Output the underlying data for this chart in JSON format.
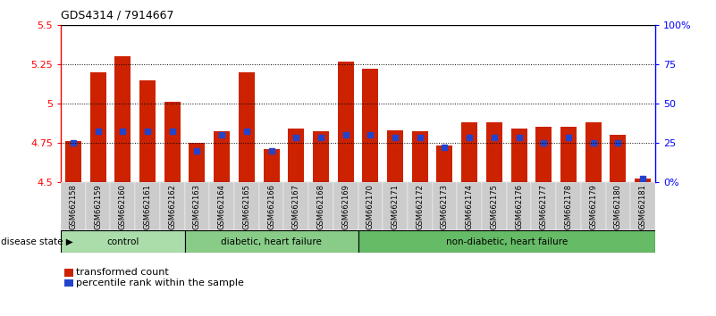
{
  "title": "GDS4314 / 7914667",
  "samples": [
    "GSM662158",
    "GSM662159",
    "GSM662160",
    "GSM662161",
    "GSM662162",
    "GSM662163",
    "GSM662164",
    "GSM662165",
    "GSM662166",
    "GSM662167",
    "GSM662168",
    "GSM662169",
    "GSM662170",
    "GSM662171",
    "GSM662172",
    "GSM662173",
    "GSM662174",
    "GSM662175",
    "GSM662176",
    "GSM662177",
    "GSM662178",
    "GSM662179",
    "GSM662180",
    "GSM662181"
  ],
  "red_values": [
    4.76,
    5.2,
    5.3,
    5.15,
    5.01,
    4.75,
    4.82,
    5.2,
    4.71,
    4.84,
    4.82,
    5.27,
    5.22,
    4.83,
    4.82,
    4.73,
    4.88,
    4.88,
    4.84,
    4.85,
    4.85,
    4.88,
    4.8,
    4.52
  ],
  "blue_values": [
    25,
    32,
    32,
    32,
    32,
    20,
    30,
    32,
    20,
    28,
    28,
    30,
    30,
    28,
    28,
    22,
    28,
    28,
    28,
    25,
    28,
    25,
    25,
    2
  ],
  "groups": [
    {
      "label": "control",
      "start": 0,
      "end": 5,
      "color": "#aaddaa"
    },
    {
      "label": "diabetic, heart failure",
      "start": 5,
      "end": 12,
      "color": "#88cc88"
    },
    {
      "label": "non-diabetic, heart failure",
      "start": 12,
      "end": 24,
      "color": "#66bb66"
    }
  ],
  "ylim_left": [
    4.5,
    5.5
  ],
  "ylim_right": [
    0,
    100
  ],
  "yticks_left": [
    4.5,
    4.75,
    5.0,
    5.25,
    5.5
  ],
  "yticks_right": [
    0,
    25,
    50,
    75,
    100
  ],
  "ytick_labels_left": [
    "4.5",
    "4.75",
    "5",
    "5.25",
    "5.5"
  ],
  "ytick_labels_right": [
    "0%",
    "25",
    "50",
    "75",
    "100%"
  ],
  "hlines": [
    4.75,
    5.0,
    5.25
  ],
  "bar_color": "#cc2200",
  "blue_color": "#2244cc",
  "plot_bg_color": "#ffffff",
  "tick_bg_color": "#cccccc",
  "legend_items": [
    {
      "color": "#cc2200",
      "label": "transformed count"
    },
    {
      "color": "#2244cc",
      "label": "percentile rank within the sample"
    }
  ]
}
